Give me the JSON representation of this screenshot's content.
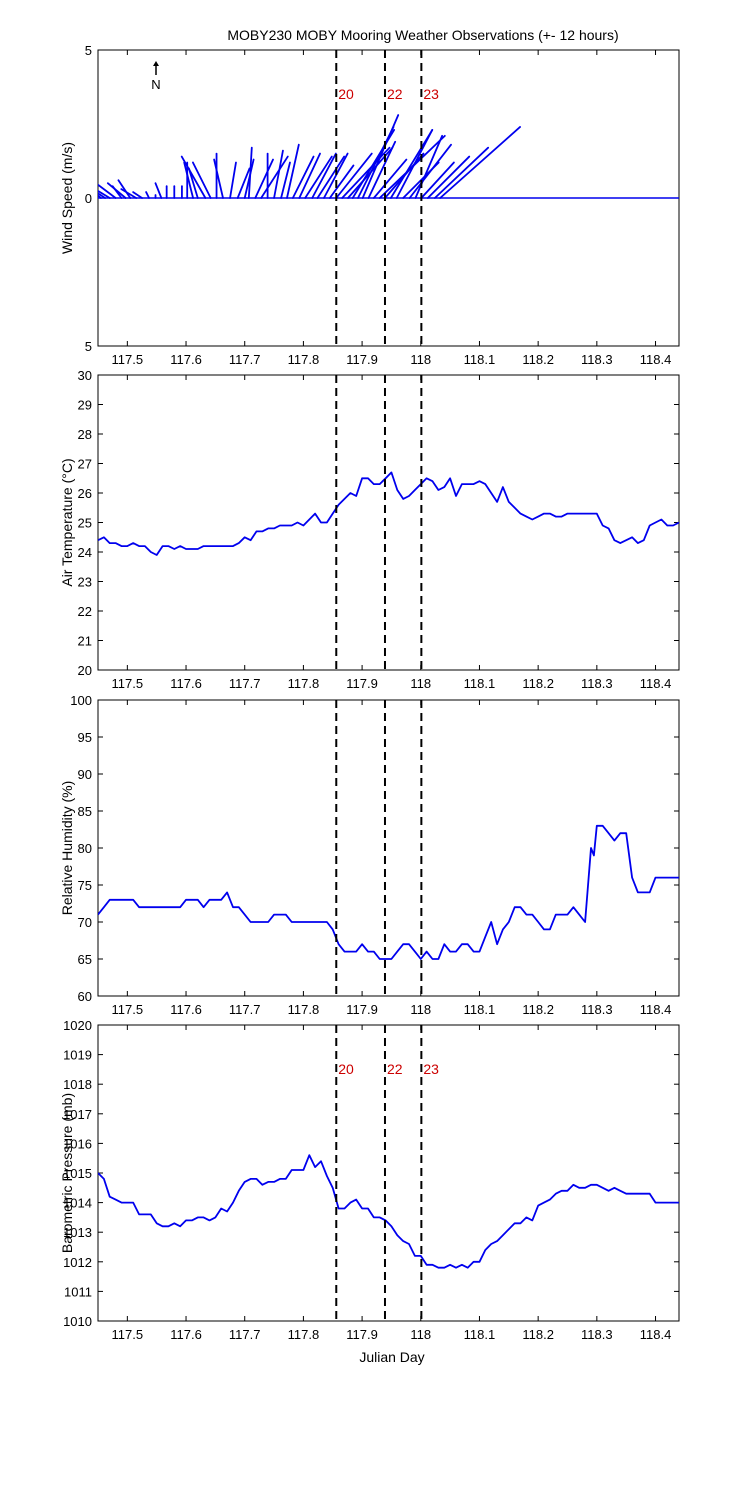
{
  "figure": {
    "title": "MOBY230 MOBY Mooring Weather Observations (+- 12 hours)",
    "xlabel": "Julian Day",
    "north_label": "N"
  },
  "colors": {
    "series": "#0000ee",
    "markers": "#cc0000",
    "axes": "#000000"
  },
  "chart_data": [
    {
      "type": "line",
      "name": "wind",
      "ylabel": "Wind Speed (m/s)",
      "xlim": [
        117.45,
        118.44
      ],
      "ylim": [
        -5,
        5
      ],
      "yticks": [
        5,
        0,
        5
      ],
      "ytick_values": [
        -5,
        0,
        5
      ],
      "xticks": [
        117.5,
        117.6,
        117.7,
        117.8,
        117.9,
        118,
        118.1,
        118.2,
        118.3,
        118.4
      ],
      "vlines": [
        117.856,
        117.939,
        118.001
      ],
      "vline_labels": [
        "20",
        "22",
        "23"
      ],
      "baseline": 0,
      "vectors": [
        [
          117.45,
          -0.4,
          0.4
        ],
        [
          117.455,
          -0.7,
          0.6
        ],
        [
          117.462,
          -0.6,
          0.4
        ],
        [
          117.47,
          -0.5,
          0.3
        ],
        [
          117.48,
          -0.8,
          0.6
        ],
        [
          117.49,
          -0.3,
          0.4
        ],
        [
          117.497,
          -0.6,
          0.5
        ],
        [
          117.505,
          -0.4,
          0.6
        ],
        [
          117.515,
          -0.5,
          0.3
        ],
        [
          117.525,
          -0.3,
          0.2
        ],
        [
          117.537,
          -0.1,
          0.2
        ],
        [
          117.548,
          0.0,
          0.1
        ],
        [
          117.558,
          -0.2,
          0.5
        ],
        [
          117.567,
          0.0,
          0.4
        ],
        [
          117.58,
          0.0,
          0.4
        ],
        [
          117.593,
          0.0,
          0.4
        ],
        [
          117.602,
          0.0,
          1.2
        ],
        [
          117.612,
          -0.3,
          1.2
        ],
        [
          117.62,
          -0.3,
          1.0
        ],
        [
          117.633,
          -0.8,
          1.4
        ],
        [
          117.642,
          -0.6,
          1.2
        ],
        [
          117.652,
          0.0,
          1.5
        ],
        [
          117.663,
          -0.3,
          1.3
        ],
        [
          117.675,
          0.2,
          1.2
        ],
        [
          117.688,
          0.4,
          1.0
        ],
        [
          117.7,
          0.3,
          1.3
        ],
        [
          117.707,
          0.1,
          1.7
        ],
        [
          117.718,
          0.6,
          1.3
        ],
        [
          117.728,
          0.9,
          1.4
        ],
        [
          117.739,
          0.0,
          1.5
        ],
        [
          117.75,
          0.3,
          1.6
        ],
        [
          117.762,
          0.3,
          1.2
        ],
        [
          117.772,
          0.4,
          1.8
        ],
        [
          117.782,
          0.7,
          1.4
        ],
        [
          117.793,
          0.7,
          1.5
        ],
        [
          117.803,
          0.9,
          1.4
        ],
        [
          117.815,
          0.8,
          1.5
        ],
        [
          117.824,
          0.9,
          1.4
        ],
        [
          117.835,
          0.8,
          1.5
        ],
        [
          117.845,
          0.8,
          1.1
        ],
        [
          117.856,
          1.2,
          1.5
        ],
        [
          117.866,
          1.6,
          1.7
        ],
        [
          117.876,
          1.5,
          1.7
        ],
        [
          117.884,
          1.4,
          2.3
        ],
        [
          117.893,
          1.2,
          2.4
        ],
        [
          117.901,
          1.2,
          2.8
        ],
        [
          117.911,
          0.9,
          1.9
        ],
        [
          117.92,
          1.1,
          1.3
        ],
        [
          117.93,
          2.2,
          2.1
        ],
        [
          117.939,
          1.3,
          1.5
        ],
        [
          117.949,
          1.4,
          2.3
        ],
        [
          117.959,
          1.2,
          2.3
        ],
        [
          117.97,
          1.2,
          1.2
        ],
        [
          117.981,
          1.4,
          1.8
        ],
        [
          117.991,
          0.9,
          2.1
        ],
        [
          118.001,
          1.1,
          1.2
        ],
        [
          118.012,
          1.4,
          1.4
        ],
        [
          118.024,
          1.8,
          1.7
        ],
        [
          118.033,
          2.7,
          2.4
        ]
      ]
    },
    {
      "type": "line",
      "name": "air-temperature",
      "ylabel": "Air Temperature (°C)",
      "xlim": [
        117.45,
        118.44
      ],
      "ylim": [
        20,
        30
      ],
      "yticks": [
        20,
        21,
        22,
        23,
        24,
        25,
        26,
        27,
        28,
        29,
        30
      ],
      "xticks": [
        117.5,
        117.6,
        117.7,
        117.8,
        117.9,
        118,
        118.1,
        118.2,
        118.3,
        118.4
      ],
      "vlines": [
        117.856,
        117.939,
        118.001
      ],
      "x": [
        117.45,
        117.46,
        117.47,
        117.48,
        117.49,
        117.5,
        117.51,
        117.52,
        117.53,
        117.54,
        117.55,
        117.56,
        117.57,
        117.58,
        117.59,
        117.6,
        117.61,
        117.62,
        117.63,
        117.64,
        117.65,
        117.66,
        117.67,
        117.68,
        117.69,
        117.7,
        117.71,
        117.72,
        117.73,
        117.74,
        117.75,
        117.76,
        117.77,
        117.78,
        117.79,
        117.8,
        117.81,
        117.82,
        117.83,
        117.84,
        117.85,
        117.86,
        117.87,
        117.88,
        117.89,
        117.9,
        117.91,
        117.92,
        117.93,
        117.94,
        117.95,
        117.96,
        117.97,
        117.98,
        117.99,
        118.0,
        118.01,
        118.02,
        118.03,
        118.04,
        118.05,
        118.06,
        118.07,
        118.08,
        118.09,
        118.1,
        118.11,
        118.12,
        118.13,
        118.14,
        118.15,
        118.16,
        118.17,
        118.18,
        118.19,
        118.2,
        118.21,
        118.22,
        118.23,
        118.24,
        118.25,
        118.26,
        118.27,
        118.28,
        118.29,
        118.3,
        118.31,
        118.32,
        118.33,
        118.34,
        118.35,
        118.36,
        118.37,
        118.38,
        118.39,
        118.4,
        118.41,
        118.42,
        118.43,
        118.44
      ],
      "values": [
        24.4,
        24.5,
        24.3,
        24.3,
        24.2,
        24.2,
        24.3,
        24.2,
        24.2,
        24.0,
        23.9,
        24.2,
        24.2,
        24.1,
        24.2,
        24.1,
        24.1,
        24.1,
        24.2,
        24.2,
        24.2,
        24.2,
        24.2,
        24.2,
        24.3,
        24.5,
        24.4,
        24.7,
        24.7,
        24.8,
        24.8,
        24.9,
        24.9,
        24.9,
        25.0,
        24.9,
        25.1,
        25.3,
        25.0,
        25.0,
        25.3,
        25.6,
        25.8,
        26.0,
        25.9,
        26.5,
        26.5,
        26.3,
        26.3,
        26.5,
        26.7,
        26.1,
        25.8,
        25.9,
        26.1,
        26.3,
        26.5,
        26.4,
        26.1,
        26.2,
        26.5,
        25.9,
        26.3,
        26.3,
        26.3,
        26.4,
        26.3,
        26.0,
        25.7,
        26.2,
        25.7,
        25.5,
        25.3,
        25.2,
        25.1,
        25.2,
        25.3,
        25.3,
        25.2,
        25.2,
        25.3,
        25.3,
        25.3,
        25.3,
        25.3,
        25.3,
        24.9,
        24.8,
        24.4,
        24.3,
        24.4,
        24.5,
        24.3,
        24.4,
        24.9,
        25.0,
        25.1,
        24.9,
        24.9,
        25.0
      ]
    },
    {
      "type": "line",
      "name": "relative-humidity",
      "ylabel": "Relative Humidity (%)",
      "xlim": [
        117.45,
        118.44
      ],
      "ylim": [
        60,
        100
      ],
      "yticks": [
        60,
        65,
        70,
        75,
        80,
        85,
        90,
        95,
        100
      ],
      "xticks": [
        117.5,
        117.6,
        117.7,
        117.8,
        117.9,
        118,
        118.1,
        118.2,
        118.3,
        118.4
      ],
      "vlines": [
        117.856,
        117.939,
        118.001
      ],
      "x": [
        117.45,
        117.46,
        117.47,
        117.48,
        117.49,
        117.5,
        117.51,
        117.52,
        117.53,
        117.54,
        117.55,
        117.56,
        117.57,
        117.58,
        117.59,
        117.6,
        117.61,
        117.62,
        117.63,
        117.64,
        117.65,
        117.66,
        117.67,
        117.68,
        117.69,
        117.7,
        117.71,
        117.72,
        117.73,
        117.74,
        117.75,
        117.76,
        117.77,
        117.78,
        117.79,
        117.8,
        117.81,
        117.82,
        117.83,
        117.84,
        117.85,
        117.86,
        117.87,
        117.88,
        117.89,
        117.9,
        117.91,
        117.92,
        117.93,
        117.94,
        117.95,
        117.96,
        117.97,
        117.98,
        117.99,
        118.0,
        118.01,
        118.02,
        118.03,
        118.04,
        118.05,
        118.06,
        118.07,
        118.08,
        118.09,
        118.1,
        118.11,
        118.12,
        118.13,
        118.14,
        118.15,
        118.16,
        118.17,
        118.18,
        118.19,
        118.2,
        118.21,
        118.22,
        118.23,
        118.24,
        118.25,
        118.26,
        118.27,
        118.28,
        118.29,
        118.295,
        118.3,
        118.31,
        118.32,
        118.33,
        118.34,
        118.35,
        118.36,
        118.37,
        118.38,
        118.39,
        118.4,
        118.41,
        118.42,
        118.43,
        118.44
      ],
      "values": [
        71,
        72,
        73,
        73,
        73,
        73,
        73,
        72,
        72,
        72,
        72,
        72,
        72,
        72,
        72,
        73,
        73,
        73,
        72,
        73,
        73,
        73,
        74,
        72,
        72,
        71,
        70,
        70,
        70,
        70,
        71,
        71,
        71,
        70,
        70,
        70,
        70,
        70,
        70,
        70,
        69,
        67,
        66,
        66,
        66,
        67,
        66,
        66,
        65,
        65,
        65,
        66,
        67,
        67,
        66,
        65,
        66,
        65,
        65,
        67,
        66,
        66,
        67,
        67,
        66,
        66,
        68,
        70,
        67,
        69,
        70,
        72,
        72,
        71,
        71,
        70,
        69,
        69,
        71,
        71,
        71,
        72,
        71,
        70,
        80,
        79,
        83,
        83,
        82,
        81,
        82,
        82,
        76,
        74,
        74,
        74,
        76,
        76,
        76,
        76,
        76
      ]
    },
    {
      "type": "line",
      "name": "barometric-pressure",
      "ylabel": "Barometric Pressure (mb)",
      "xlim": [
        117.45,
        118.44
      ],
      "ylim": [
        1010,
        1020
      ],
      "yticks": [
        1010,
        1011,
        1012,
        1013,
        1014,
        1015,
        1016,
        1017,
        1018,
        1019,
        1020
      ],
      "xticks": [
        117.5,
        117.6,
        117.7,
        117.8,
        117.9,
        118,
        118.1,
        118.2,
        118.3,
        118.4
      ],
      "vlines": [
        117.856,
        117.939,
        118.001
      ],
      "vline_labels": [
        "20",
        "22",
        "23"
      ],
      "x": [
        117.45,
        117.46,
        117.47,
        117.48,
        117.49,
        117.5,
        117.51,
        117.52,
        117.53,
        117.54,
        117.55,
        117.56,
        117.57,
        117.58,
        117.59,
        117.6,
        117.61,
        117.62,
        117.63,
        117.64,
        117.65,
        117.66,
        117.67,
        117.68,
        117.69,
        117.7,
        117.71,
        117.72,
        117.73,
        117.74,
        117.75,
        117.76,
        117.77,
        117.78,
        117.79,
        117.8,
        117.81,
        117.82,
        117.83,
        117.84,
        117.85,
        117.86,
        117.87,
        117.88,
        117.89,
        117.9,
        117.91,
        117.92,
        117.93,
        117.94,
        117.95,
        117.96,
        117.97,
        117.98,
        117.99,
        118.0,
        118.01,
        118.02,
        118.03,
        118.04,
        118.05,
        118.06,
        118.07,
        118.08,
        118.09,
        118.1,
        118.11,
        118.12,
        118.13,
        118.14,
        118.15,
        118.16,
        118.17,
        118.18,
        118.19,
        118.2,
        118.21,
        118.22,
        118.23,
        118.24,
        118.25,
        118.26,
        118.27,
        118.28,
        118.29,
        118.3,
        118.31,
        118.32,
        118.33,
        118.34,
        118.35,
        118.36,
        118.37,
        118.38,
        118.39,
        118.4,
        118.41,
        118.42,
        118.43,
        118.44
      ],
      "values": [
        1015.0,
        1014.8,
        1014.2,
        1014.1,
        1014.0,
        1014.0,
        1014.0,
        1013.6,
        1013.6,
        1013.6,
        1013.3,
        1013.2,
        1013.2,
        1013.3,
        1013.2,
        1013.4,
        1013.4,
        1013.5,
        1013.5,
        1013.4,
        1013.5,
        1013.8,
        1013.7,
        1014.0,
        1014.4,
        1014.7,
        1014.8,
        1014.8,
        1014.6,
        1014.7,
        1014.7,
        1014.8,
        1014.8,
        1015.1,
        1015.1,
        1015.1,
        1015.6,
        1015.2,
        1015.4,
        1014.9,
        1014.5,
        1013.8,
        1013.8,
        1014.0,
        1014.1,
        1013.8,
        1013.8,
        1013.5,
        1013.5,
        1013.4,
        1013.2,
        1012.9,
        1012.7,
        1012.6,
        1012.2,
        1012.2,
        1011.9,
        1011.9,
        1011.8,
        1011.8,
        1011.9,
        1011.8,
        1011.9,
        1011.8,
        1012.0,
        1012.0,
        1012.4,
        1012.6,
        1012.7,
        1012.9,
        1013.1,
        1013.3,
        1013.3,
        1013.5,
        1013.4,
        1013.9,
        1014.0,
        1014.1,
        1014.3,
        1014.4,
        1014.4,
        1014.6,
        1014.5,
        1014.5,
        1014.6,
        1014.6,
        1014.5,
        1014.4,
        1014.5,
        1014.4,
        1014.3,
        1014.3,
        1014.3,
        1014.3,
        1014.3,
        1014.0,
        1014.0,
        1014.0,
        1014.0,
        1014.0
      ]
    }
  ]
}
